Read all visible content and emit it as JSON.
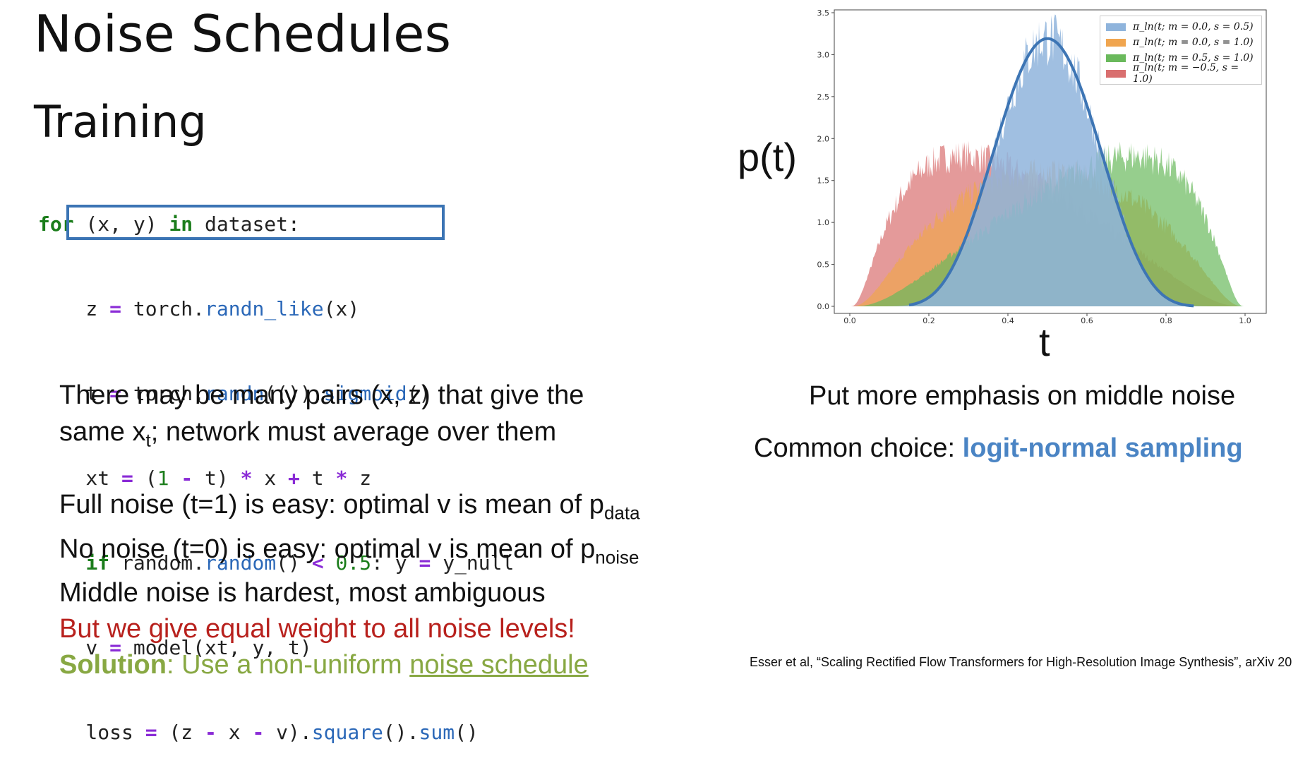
{
  "slide": {
    "title": "Noise Schedules",
    "subtitle": "Training"
  },
  "code": {
    "lines": [
      "for (x, y) in dataset:",
      "    z = torch.randn_like(x)",
      "    t = torch.randn(()).sigmoid()",
      "    xt = (1 - t) * x + t * z",
      "    if random.random() < 0.5: y = y_null",
      "    v = model(xt, y, t)",
      "    loss = (z - x - v).square().sum()"
    ]
  },
  "text": {
    "p1_a": "There may be many pairs (x, z) that give the",
    "p1_b_pre": "same x",
    "p1_b_sub": "t",
    "p1_b_post": "; network must average over them",
    "l1_pre": "Full noise (t=1) is easy: optimal v is mean of p",
    "l1_sub": "data",
    "l2_pre": "No noise (t=0) is easy: optimal v is mean of p",
    "l2_sub": "noise",
    "l3": "Middle noise is hardest, most ambiguous",
    "l4": "But we give equal weight to all noise levels!",
    "l5_bold": "Solution",
    "l5_mid": ": Use a non-uniform ",
    "l5_link": "noise schedule",
    "caption": "Put more emphasis on middle noise",
    "common_pre": "Common choice: ",
    "common_bold": "logit-normal sampling",
    "citation": "Esser et al, “Scaling Rectified Flow Transformers for High-Resolution Image Synthesis”, arXiv 20"
  },
  "chart_data": {
    "type": "area",
    "xlabel": "t",
    "ylabel": "p(t)",
    "xlim": [
      0.0,
      1.0
    ],
    "ylim": [
      0.0,
      3.5
    ],
    "xticks": [
      "0.0",
      "0.2",
      "0.4",
      "0.6",
      "0.8",
      "1.0"
    ],
    "yticks": [
      "0.0",
      "0.5",
      "1.0",
      "1.5",
      "2.0",
      "2.5",
      "3.0",
      "3.5"
    ],
    "legend_position": "top-right",
    "series": [
      {
        "name": "π_ln(t; m = 0.0, s = 0.5)",
        "m": 0.0,
        "s": 0.5,
        "color": "#8fb4dc"
      },
      {
        "name": "π_ln(t; m = 0.0, s = 1.0)",
        "m": 0.0,
        "s": 1.0,
        "color": "#f0a54f"
      },
      {
        "name": "π_ln(t; m = 0.5, s = 1.0)",
        "m": 0.5,
        "s": 1.0,
        "color": "#6ab95c"
      },
      {
        "name": "π_ln(t; m = −0.5, s = 1.0)",
        "m": -0.5,
        "s": 1.0,
        "color": "#d96f6f"
      }
    ],
    "outline_series": 0,
    "outline_color": "#3d75b4"
  }
}
